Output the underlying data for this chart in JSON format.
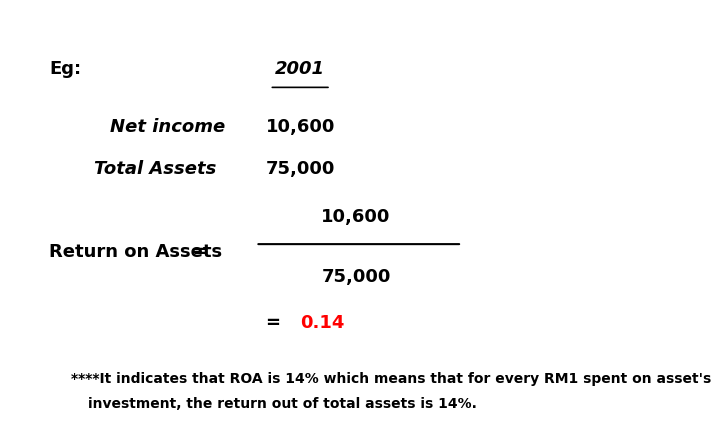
{
  "bg_color": "#ffffff",
  "eg_label": "Eg:",
  "year_label": "2001",
  "net_income_label": "Net income",
  "net_income_value": "10,600",
  "total_assets_label": "Total Assets",
  "total_assets_value": "75,000",
  "roa_label": "Return on Assets",
  "equals_sign": "=",
  "numerator": "10,600",
  "denominator": "75,000",
  "result_equals": "=",
  "result_value": "0.14",
  "result_color": "#ff0000",
  "footnote_line1": "****It indicates that ROA is 14% which means that for every RM1 spent on asset's",
  "footnote_line2": "investment, the return out of total assets is 14%.",
  "font_size_main": 13,
  "font_size_footnote": 10
}
